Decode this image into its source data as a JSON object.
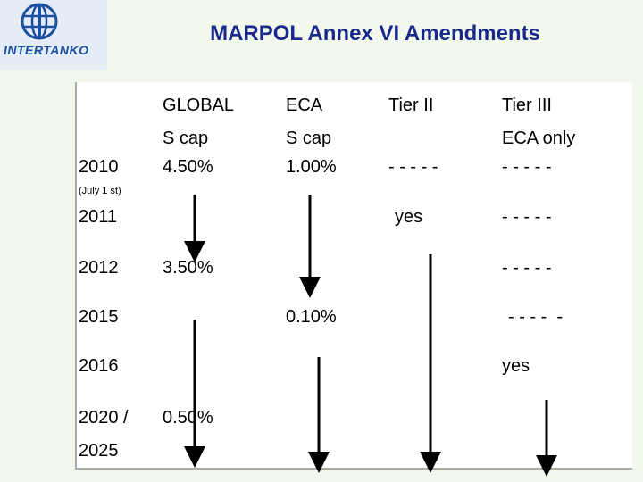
{
  "header": {
    "logo_text": "INTERTANKO",
    "title": "MARPOL Annex VI Amendments"
  },
  "table": {
    "columns": {
      "global": [
        "GLOBAL",
        "S cap"
      ],
      "eca": [
        "ECA",
        "S cap"
      ],
      "tier2": [
        "Tier II"
      ],
      "tier3": [
        "Tier III",
        "ECA only"
      ]
    },
    "rows": [
      {
        "year": [
          "2010"
        ],
        "note": "(July 1 st)",
        "global": "4.50%",
        "eca": "1.00%",
        "tier2": "- - - - -",
        "tier3": "- - - - -"
      },
      {
        "year": [
          "2011"
        ],
        "tier2": "yes",
        "tier3": "- - - - -"
      },
      {
        "year": [
          "2012"
        ],
        "global": "3.50%",
        "tier3": "- - - - -"
      },
      {
        "year": [
          "2015"
        ],
        "eca": "0.10%",
        "tier3": "- - - -  -"
      },
      {
        "year": [
          "2016"
        ],
        "tier3": "yes"
      },
      {
        "year": [
          "2020 /",
          "2025"
        ],
        "global": "0.50%"
      }
    ]
  }
}
